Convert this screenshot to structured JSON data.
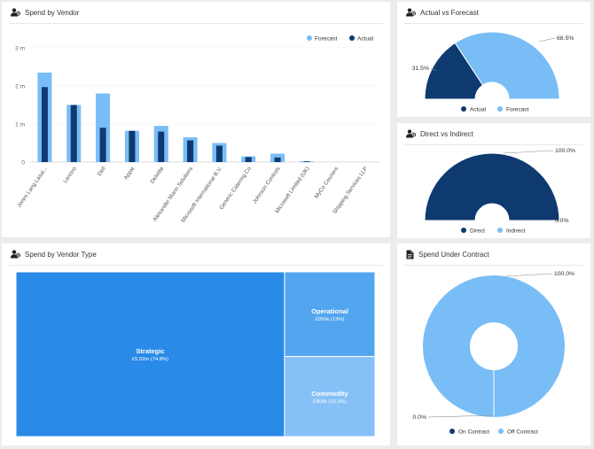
{
  "colors": {
    "dark": "#0e3a70",
    "light": "#79bdf7",
    "tm_strategic": "#2a8ae8",
    "tm_operational": "#54a5f0",
    "tm_commodity": "#86c0f7"
  },
  "panels": {
    "vendor": {
      "title": "Spend by Vendor",
      "icon": "people-icon"
    },
    "actual_forecast": {
      "title": "Actual vs Forecast",
      "icon": "people-icon"
    },
    "direct_indirect": {
      "title": "Direct vs Indirect",
      "icon": "people-icon"
    },
    "vendor_type": {
      "title": "Spend by Vendor Type",
      "icon": "people-icon"
    },
    "contract": {
      "title": "Spend Under Contract",
      "icon": "document-icon"
    }
  },
  "chart_data": [
    {
      "id": "vendor",
      "type": "bar",
      "title": "Spend by Vendor",
      "categories": [
        "Jones Lang Lasal...",
        "Lenovo",
        "Dell",
        "Apple",
        "Deloitte",
        "Alexander Mann Solutions",
        "Microsoft International B.V.",
        "Generic Catering Co",
        "Johnson Controls",
        "Microsoft Limited (UK)",
        "MyCo Couriers",
        "Shipping Services LLP"
      ],
      "series": [
        {
          "name": "Forecast",
          "values": [
            2.35,
            1.5,
            1.8,
            0.82,
            0.95,
            0.65,
            0.5,
            0.15,
            0.22,
            0.02,
            0.0,
            0.0
          ]
        },
        {
          "name": "Actual",
          "values": [
            1.97,
            1.5,
            0.9,
            0.82,
            0.8,
            0.57,
            0.43,
            0.13,
            0.12,
            0.02,
            0.0,
            0.0
          ]
        }
      ],
      "ylim": [
        0,
        3
      ],
      "yticks": [
        "0",
        "1 m",
        "2 m",
        "3 m"
      ],
      "grid": true,
      "legend": "top-right"
    },
    {
      "id": "actual_forecast",
      "type": "pie",
      "variant": "semi-donut",
      "labels": [
        "Actual",
        "Forecast"
      ],
      "values": [
        31.5,
        68.5
      ],
      "value_labels": [
        "31.5%",
        "68.5%"
      ],
      "legend": "bottom"
    },
    {
      "id": "direct_indirect",
      "type": "pie",
      "variant": "semi-donut",
      "labels": [
        "Direct",
        "Indirect"
      ],
      "values": [
        100.0,
        0.0
      ],
      "value_labels": [
        "100.0%",
        "0.0%"
      ],
      "legend": "bottom"
    },
    {
      "id": "vendor_type",
      "type": "treemap",
      "items": [
        {
          "name": "Strategic",
          "label": "£5.52m (74.8%)",
          "percent": 74.8
        },
        {
          "name": "Operational",
          "label": "£956k (13%)",
          "percent": 13.0
        },
        {
          "name": "Commodity",
          "label": "£905k (12.3%)",
          "percent": 12.3
        }
      ]
    },
    {
      "id": "contract",
      "type": "pie",
      "variant": "donut",
      "labels": [
        "On Contract",
        "Off Contract"
      ],
      "values": [
        0.0,
        100.0
      ],
      "value_labels": [
        "0.0%",
        "100.0%"
      ],
      "legend": "bottom"
    }
  ]
}
